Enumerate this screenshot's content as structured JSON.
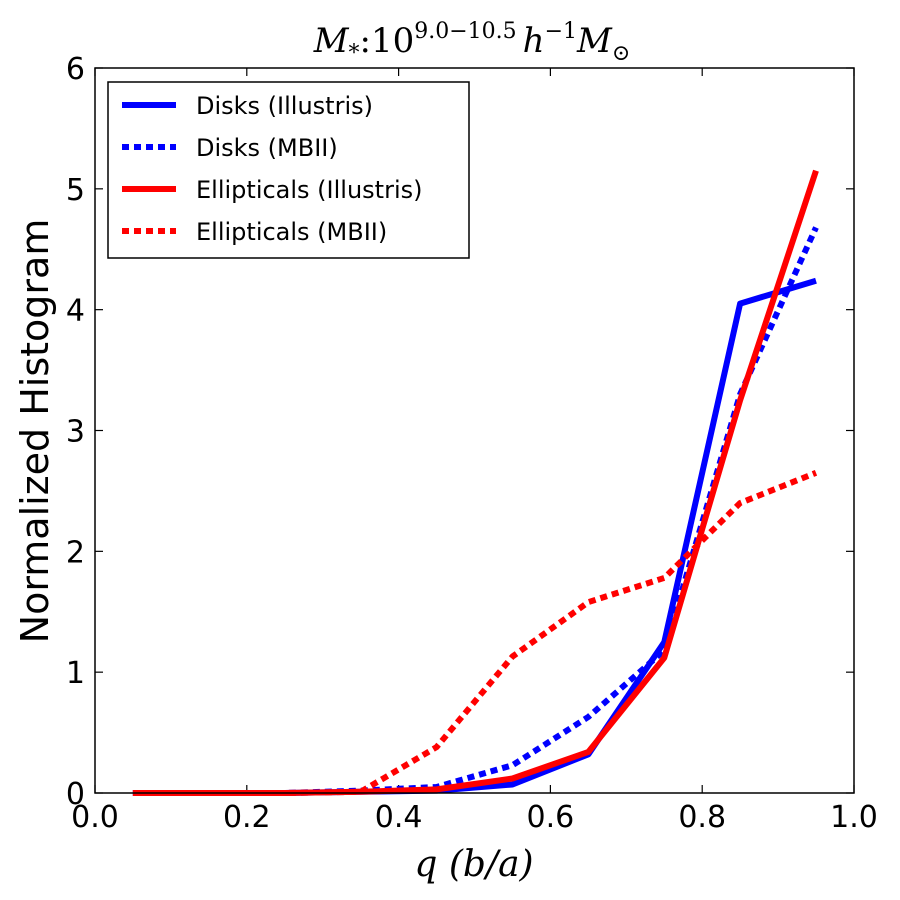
{
  "chart_data": {
    "type": "line",
    "title": "M_*:10^{9.0−10.5} h^{−1} M_⊙",
    "title_parts": {
      "lhs": "M",
      "lhs_sub": "*",
      "colon": ":",
      "base": "10",
      "exp": "9.0−10.5",
      "h": "h",
      "h_exp": "−1",
      "m": "M",
      "m_sub": "⊙"
    },
    "xlabel": "q (b/a)",
    "ylabel": "Normalized Histogram",
    "xlim": [
      0.0,
      1.0
    ],
    "ylim": [
      0,
      6
    ],
    "xticks": [
      "0.0",
      "0.2",
      "0.4",
      "0.6",
      "0.8",
      "1.0"
    ],
    "yticks": [
      "0",
      "1",
      "2",
      "3",
      "4",
      "5",
      "6"
    ],
    "legend_position": "top-left",
    "x": [
      0.05,
      0.15,
      0.25,
      0.35,
      0.45,
      0.55,
      0.65,
      0.75,
      0.85,
      0.95
    ],
    "series": [
      {
        "name": "Disks (Illustris)",
        "color": "#0000ff",
        "style": "solid",
        "values": [
          0.0,
          0.0,
          0.0,
          0.01,
          0.02,
          0.07,
          0.32,
          1.25,
          4.05,
          4.24
        ]
      },
      {
        "name": "Disks (MBII)",
        "color": "#0000ff",
        "style": "dotted",
        "values": [
          0.0,
          0.0,
          0.0,
          0.02,
          0.05,
          0.23,
          0.63,
          1.18,
          3.3,
          4.68
        ]
      },
      {
        "name": "Ellipticals (Illustris)",
        "color": "#ff0000",
        "style": "solid",
        "values": [
          0.0,
          0.0,
          0.0,
          0.01,
          0.03,
          0.12,
          0.34,
          1.12,
          3.25,
          5.15
        ]
      },
      {
        "name": "Ellipticals (MBII)",
        "color": "#ff0000",
        "style": "dotted",
        "values": [
          0.0,
          0.0,
          0.0,
          0.01,
          0.38,
          1.13,
          1.58,
          1.78,
          2.4,
          2.65
        ]
      }
    ]
  }
}
